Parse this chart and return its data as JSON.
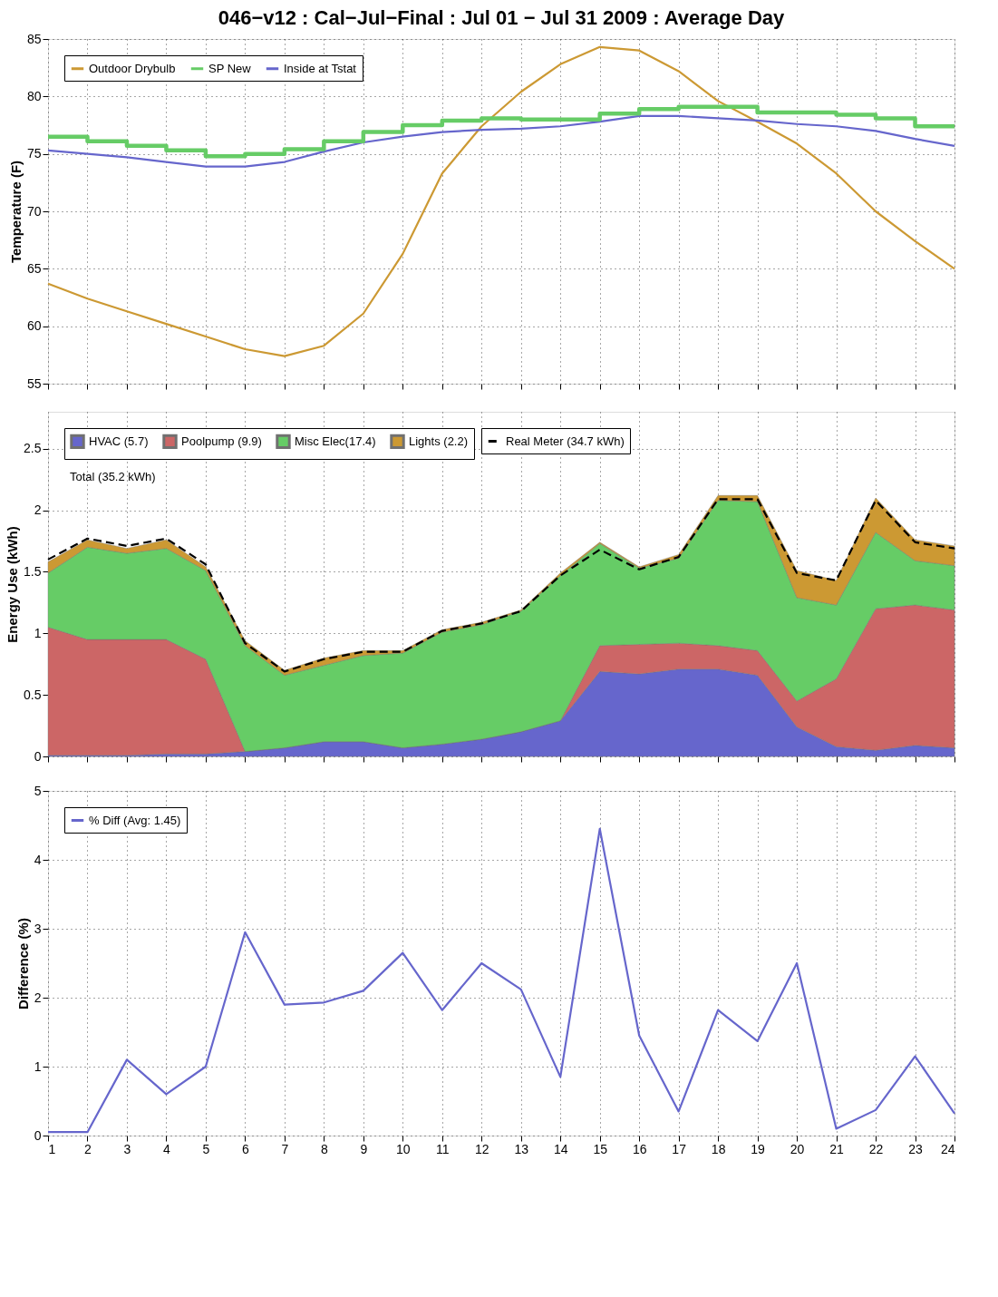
{
  "chart_data": [
    {
      "type": "line",
      "title": "046−v12 : Cal−Jul−Final : Jul 01 − Jul 31 2009 : Average Day",
      "ylabel": "Temperature (F)",
      "x": [
        1,
        2,
        3,
        4,
        5,
        6,
        7,
        8,
        9,
        10,
        11,
        12,
        13,
        14,
        15,
        16,
        17,
        18,
        19,
        20,
        21,
        22,
        23,
        24
      ],
      "xlim": [
        1,
        24
      ],
      "xticks": [
        1,
        2,
        3,
        4,
        5,
        6,
        7,
        8,
        9,
        10,
        11,
        12,
        13,
        14,
        15,
        16,
        17,
        18,
        19,
        20,
        21,
        22,
        23,
        24
      ],
      "ylim": [
        55,
        85
      ],
      "yticks": [
        55,
        60,
        65,
        70,
        75,
        80,
        85
      ],
      "grid": true,
      "legend": "top left",
      "tick_labels": "y",
      "series": [
        {
          "name": "Outdoor Drybulb",
          "color": "#cc9933",
          "values": [
            63.7,
            62.4,
            61.3,
            60.2,
            59.1,
            58.0,
            57.4,
            58.3,
            61.1,
            66.3,
            73.3,
            77.4,
            80.4,
            82.8,
            84.3,
            84.0,
            82.2,
            79.6,
            77.8,
            75.9,
            73.3,
            70.0,
            67.4,
            65.0
          ]
        },
        {
          "name": "SP New",
          "type": "step",
          "color": "#66cc66",
          "values": [
            76.5,
            76.1,
            75.7,
            75.3,
            74.8,
            75.0,
            75.4,
            76.1,
            76.9,
            77.5,
            77.9,
            78.1,
            78.0,
            78.0,
            78.5,
            78.9,
            79.1,
            79.1,
            78.6,
            78.6,
            78.4,
            78.1,
            77.4,
            77.4
          ]
        },
        {
          "name": "Inside at Tstat",
          "color": "#6666cc",
          "values": [
            75.3,
            75.0,
            74.7,
            74.3,
            73.9,
            73.9,
            74.3,
            75.2,
            76.0,
            76.5,
            76.9,
            77.1,
            77.2,
            77.4,
            77.8,
            78.3,
            78.3,
            78.1,
            77.9,
            77.6,
            77.4,
            77.0,
            76.3,
            75.7
          ]
        }
      ]
    },
    {
      "type": "area",
      "stacked": true,
      "ylabel": "Energy Use (kWh)",
      "x": [
        1,
        2,
        3,
        4,
        5,
        6,
        7,
        8,
        9,
        10,
        11,
        12,
        13,
        14,
        15,
        16,
        17,
        18,
        19,
        20,
        21,
        22,
        23,
        24
      ],
      "xlim": [
        1,
        24
      ],
      "xticks": [
        1,
        2,
        3,
        4,
        5,
        6,
        7,
        8,
        9,
        10,
        11,
        12,
        13,
        14,
        15,
        16,
        17,
        18,
        19,
        20,
        21,
        22,
        23,
        24
      ],
      "ylim": [
        0,
        2.8
      ],
      "yticks": [
        0,
        0.5,
        1,
        1.5,
        2,
        2.5
      ],
      "grid": true,
      "legend": "top left",
      "tick_labels": "y",
      "annotations": [
        "Total (35.2 kWh)"
      ],
      "series": [
        {
          "name": "HVAC (5.7)",
          "color": "#6666cc",
          "values": [
            0.01,
            0.01,
            0.01,
            0.02,
            0.02,
            0.04,
            0.07,
            0.12,
            0.12,
            0.07,
            0.1,
            0.14,
            0.2,
            0.29,
            0.69,
            0.67,
            0.71,
            0.71,
            0.66,
            0.24,
            0.08,
            0.05,
            0.09,
            0.07
          ]
        },
        {
          "name": "Poolpump (9.9)",
          "color": "#cc6666",
          "values": [
            1.04,
            0.94,
            0.94,
            0.93,
            0.77,
            0,
            0,
            0,
            0,
            0,
            0,
            0,
            0,
            0,
            0.21,
            0.24,
            0.21,
            0.19,
            0.2,
            0.21,
            0.55,
            1.15,
            1.14,
            1.12
          ]
        },
        {
          "name": "Misc Elec(17.4)",
          "color": "#66cc66",
          "values": [
            0.44,
            0.75,
            0.7,
            0.74,
            0.72,
            0.86,
            0.59,
            0.62,
            0.7,
            0.77,
            0.91,
            0.93,
            0.98,
            1.18,
            0.83,
            0.62,
            0.69,
            1.18,
            1.21,
            0.84,
            0.6,
            0.62,
            0.36,
            0.36
          ]
        },
        {
          "name": "Lights (2.2)",
          "color": "#cc9933",
          "values": [
            0.09,
            0.06,
            0.04,
            0.07,
            0.03,
            0.04,
            0.04,
            0.06,
            0.04,
            0.02,
            0.02,
            0.02,
            0.01,
            0.02,
            0.01,
            0.01,
            0.03,
            0.04,
            0.05,
            0.22,
            0.2,
            0.28,
            0.17,
            0.16
          ]
        },
        {
          "name": "Real Meter (34.7 kWh)",
          "type": "line",
          "line_style": "dashed",
          "color": "#000000",
          "values": [
            1.6,
            1.77,
            1.71,
            1.77,
            1.56,
            0.92,
            0.69,
            0.79,
            0.85,
            0.85,
            1.02,
            1.08,
            1.18,
            1.47,
            1.68,
            1.52,
            1.62,
            2.09,
            2.09,
            1.49,
            1.43,
            2.08,
            1.74,
            1.69
          ]
        }
      ]
    },
    {
      "type": "line",
      "ylabel": "Difference (%)",
      "x": [
        1,
        2,
        3,
        4,
        5,
        6,
        7,
        8,
        9,
        10,
        11,
        12,
        13,
        14,
        15,
        16,
        17,
        18,
        19,
        20,
        21,
        22,
        23,
        24
      ],
      "xlim": [
        1,
        24
      ],
      "xticks": [
        1,
        2,
        3,
        4,
        5,
        6,
        7,
        8,
        9,
        10,
        11,
        12,
        13,
        14,
        15,
        16,
        17,
        18,
        19,
        20,
        21,
        22,
        23,
        24
      ],
      "ylim": [
        0,
        5
      ],
      "yticks": [
        0,
        1,
        2,
        3,
        4,
        5
      ],
      "grid": true,
      "legend": "top left",
      "series": [
        {
          "name": "% Diff (Avg: 1.45)",
          "color": "#6666cc",
          "values": [
            0.05,
            0.05,
            1.1,
            0.6,
            1.0,
            2.95,
            1.9,
            1.93,
            2.1,
            2.65,
            1.82,
            2.5,
            2.12,
            0.85,
            4.45,
            1.45,
            0.35,
            1.82,
            1.37,
            2.5,
            0.1,
            0.37,
            1.15,
            0.32
          ]
        }
      ]
    }
  ]
}
